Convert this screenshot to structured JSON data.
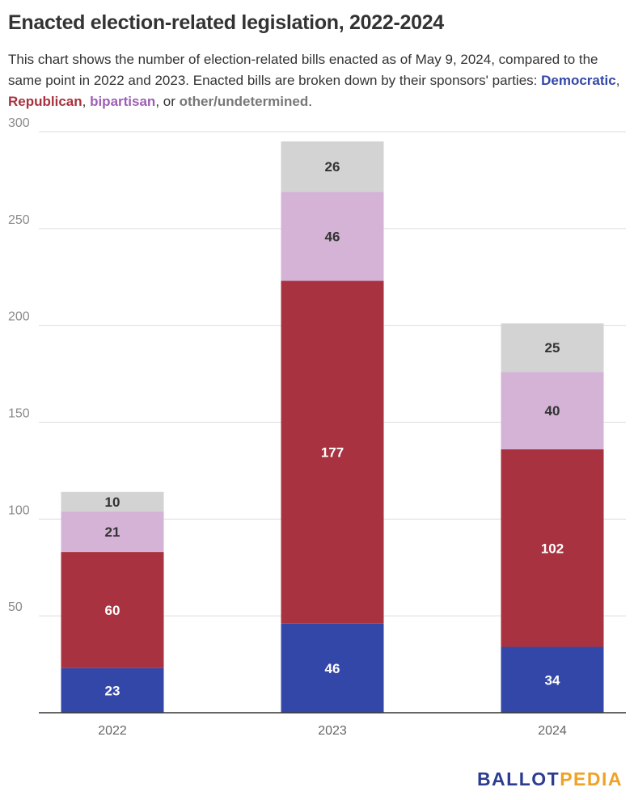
{
  "title": "Enacted election-related legislation, 2022-2024",
  "subtitle": {
    "line": "This chart shows the number of election-related bills enacted as of May 9, 2024, compared to the same point in 2022 and 2023. Enacted bills are broken down by their sponsors' parties: ",
    "democratic": "Democratic",
    "sep1": ", ",
    "republican": "Republican",
    "sep2": ", ",
    "bipartisan": "bipartisan",
    "sep3": ", or ",
    "other": "other/undetermined",
    "end": "."
  },
  "colors": {
    "democratic": "#3347a8",
    "republican": "#a8323f",
    "bipartisan": "#d4b3d6",
    "other": "#d3d3d3",
    "bipartisan_text": "#9e5fb5",
    "other_text": "#777777"
  },
  "logo": {
    "part1": "BALLOT",
    "part2": "PEDIA"
  },
  "chart_data": {
    "type": "bar",
    "stacked": true,
    "categories": [
      "2022",
      "2023",
      "2024"
    ],
    "series": [
      {
        "name": "Democratic",
        "values": [
          23,
          46,
          34
        ]
      },
      {
        "name": "Republican",
        "values": [
          60,
          177,
          102
        ]
      },
      {
        "name": "bipartisan",
        "values": [
          21,
          46,
          40
        ]
      },
      {
        "name": "other/undetermined",
        "values": [
          10,
          26,
          25
        ]
      }
    ],
    "yticks": [
      50,
      100,
      150,
      200,
      250,
      300
    ],
    "ylim": [
      0,
      300
    ],
    "grid": true,
    "legend": "in subtitle"
  }
}
